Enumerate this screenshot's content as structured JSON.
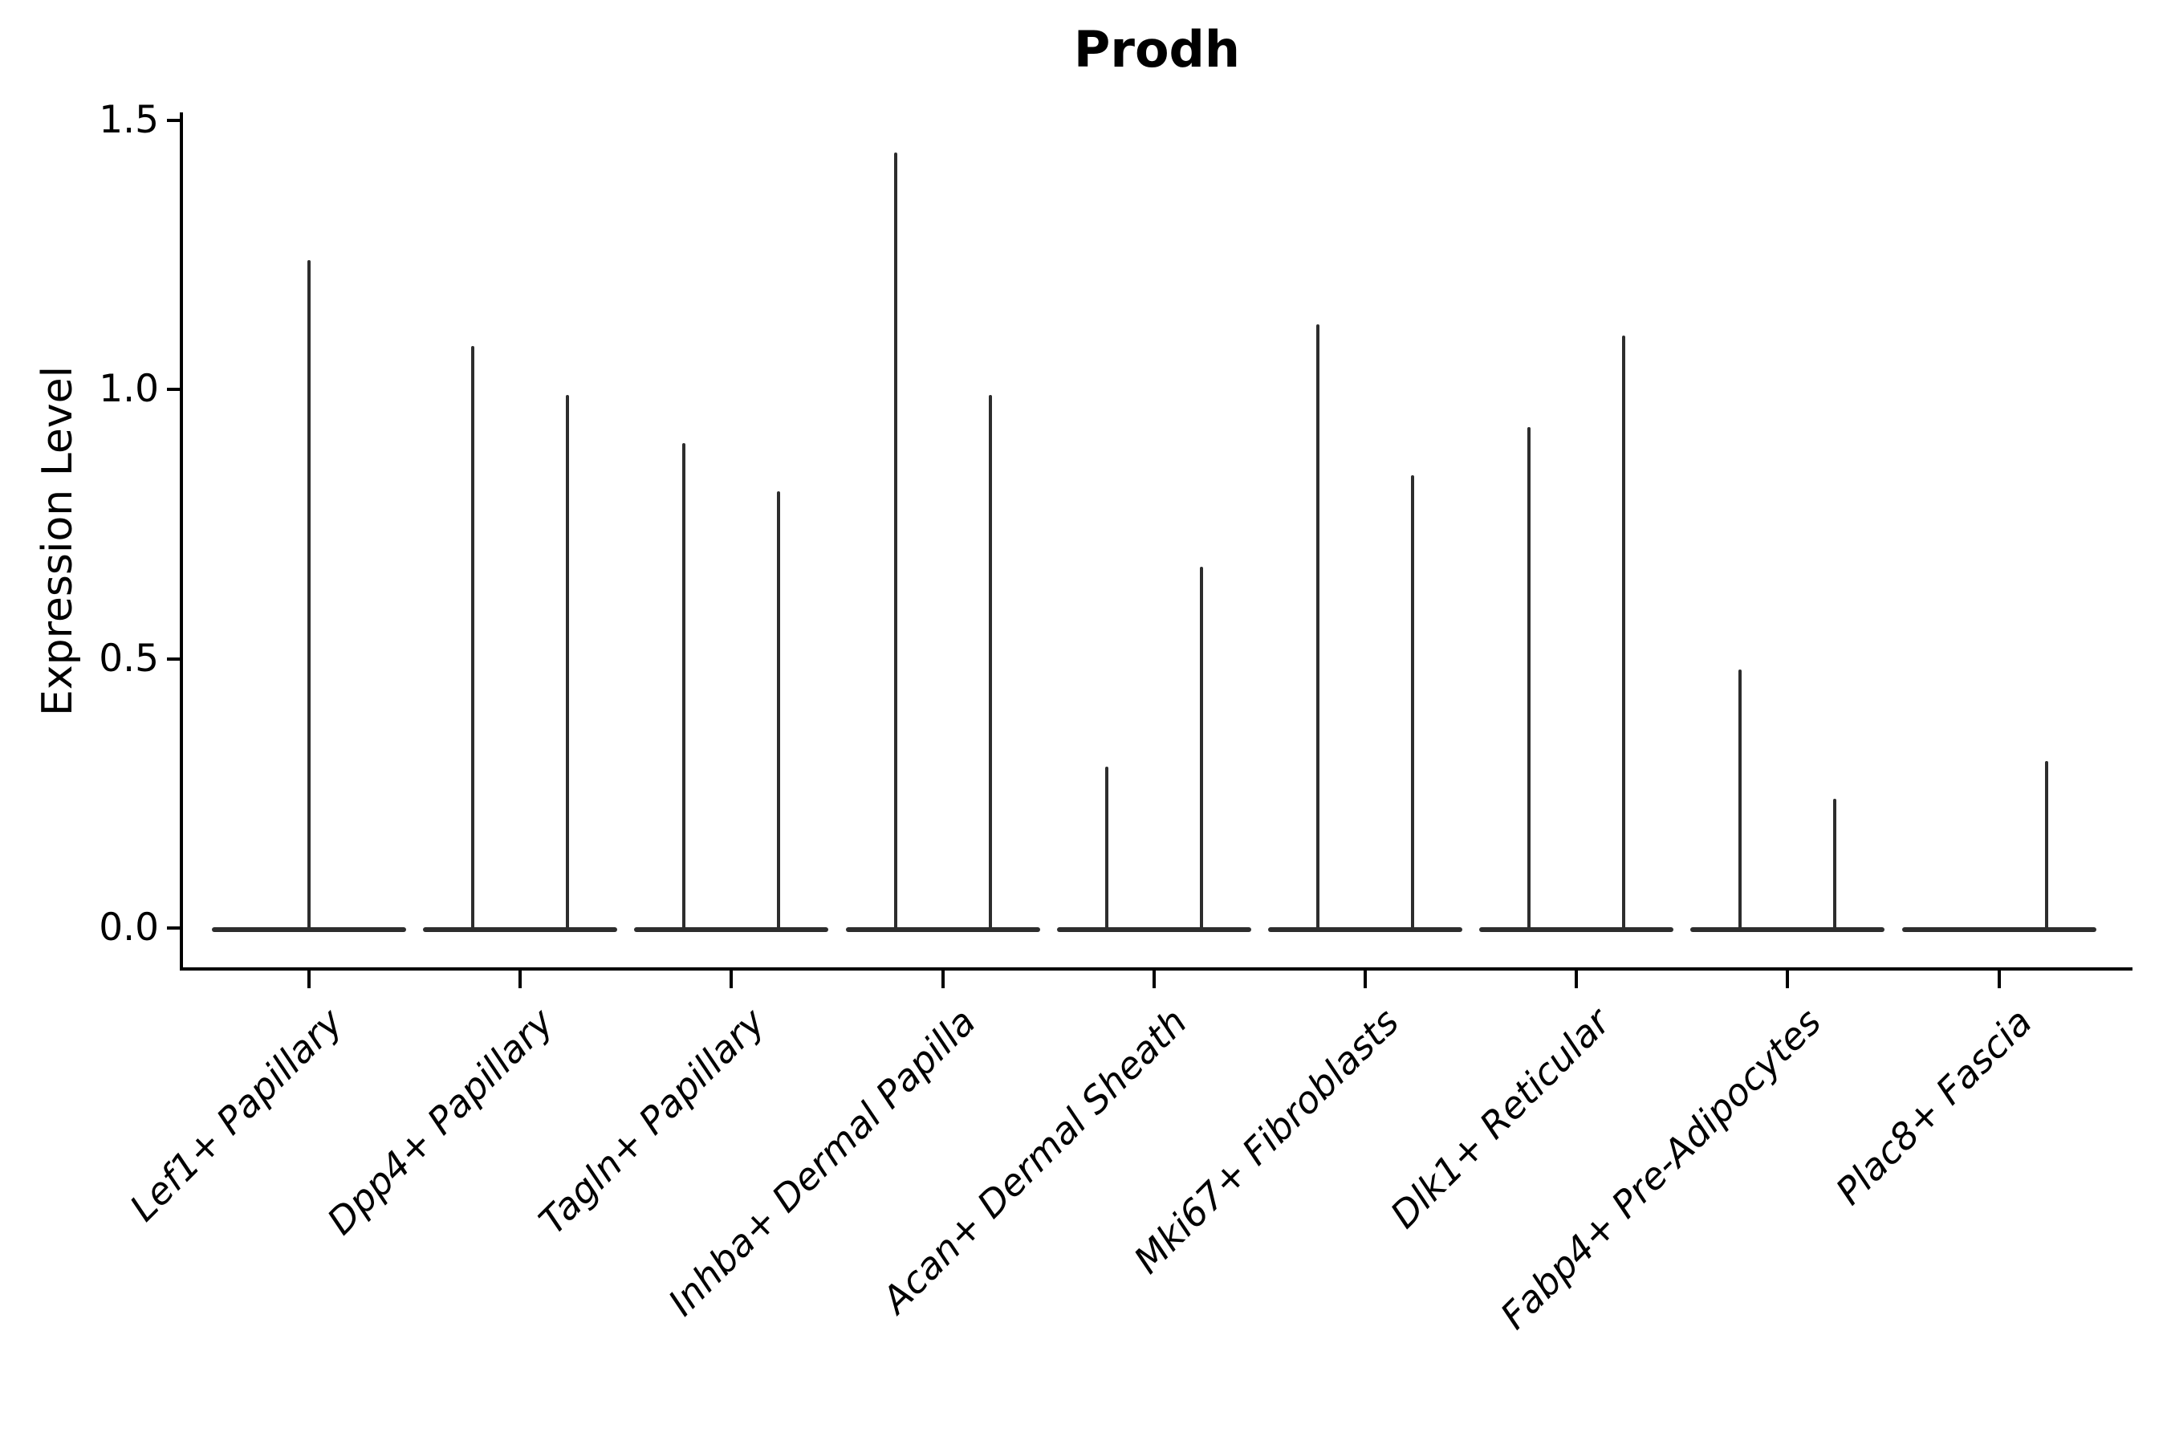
{
  "title": "Prodh",
  "ylabel": "Expression Level",
  "chart_data": {
    "type": "violin",
    "title": "Prodh",
    "xlabel": "",
    "ylabel": "Expression Level",
    "ylim": [
      -0.076,
      1.514
    ],
    "grid": false,
    "legend": "none",
    "yticks": [
      {
        "label": "0.0",
        "value": 0.0
      },
      {
        "label": "0.5",
        "value": 0.5
      },
      {
        "label": "1.0",
        "value": 1.0
      },
      {
        "label": "1.5",
        "value": 1.5
      }
    ],
    "categories": [
      "Lef1+ Papillary",
      "Dpp4+ Papillary",
      "Tagln+ Papillary",
      "Inhba+ Dermal Papilla",
      "Acan+ Dermal Sheath",
      "Mki67+ Fibroblasts",
      "Dlk1+ Reticular",
      "Fabp4+ Pre-Adipocytes",
      "Plac8+ Fascia"
    ],
    "violins": [
      {
        "category": "Lef1+ Papillary",
        "groups": [
          {
            "position": "center",
            "max_expression": 1.24
          }
        ]
      },
      {
        "category": "Dpp4+ Papillary",
        "groups": [
          {
            "position": "left",
            "max_expression": 1.08
          },
          {
            "position": "right",
            "max_expression": 0.99
          }
        ]
      },
      {
        "category": "Tagln+ Papillary",
        "groups": [
          {
            "position": "left",
            "max_expression": 0.9
          },
          {
            "position": "right",
            "max_expression": 0.81
          }
        ]
      },
      {
        "category": "Inhba+ Dermal Papilla",
        "groups": [
          {
            "position": "left",
            "max_expression": 1.44
          },
          {
            "position": "right",
            "max_expression": 0.99
          }
        ]
      },
      {
        "category": "Acan+ Dermal Sheath",
        "groups": [
          {
            "position": "left",
            "max_expression": 0.3
          },
          {
            "position": "right",
            "max_expression": 0.67
          }
        ]
      },
      {
        "category": "Mki67+ Fibroblasts",
        "groups": [
          {
            "position": "left",
            "max_expression": 1.12
          },
          {
            "position": "right",
            "max_expression": 0.84
          }
        ]
      },
      {
        "category": "Dlk1+ Reticular",
        "groups": [
          {
            "position": "left",
            "max_expression": 0.93
          },
          {
            "position": "right",
            "max_expression": 1.1
          }
        ]
      },
      {
        "category": "Fabp4+ Pre-Adipocytes",
        "groups": [
          {
            "position": "left",
            "max_expression": 0.48
          },
          {
            "position": "right",
            "max_expression": 0.24
          }
        ]
      },
      {
        "category": "Plac8+ Fascia",
        "groups": [
          {
            "position": "left",
            "max_expression": 0.0
          },
          {
            "position": "right",
            "max_expression": 0.31
          }
        ]
      }
    ],
    "style": {
      "violin_color": "#2d2d2d",
      "axis_color": "#000000",
      "text_color": "#000000",
      "background_color": "#ffffff"
    }
  }
}
